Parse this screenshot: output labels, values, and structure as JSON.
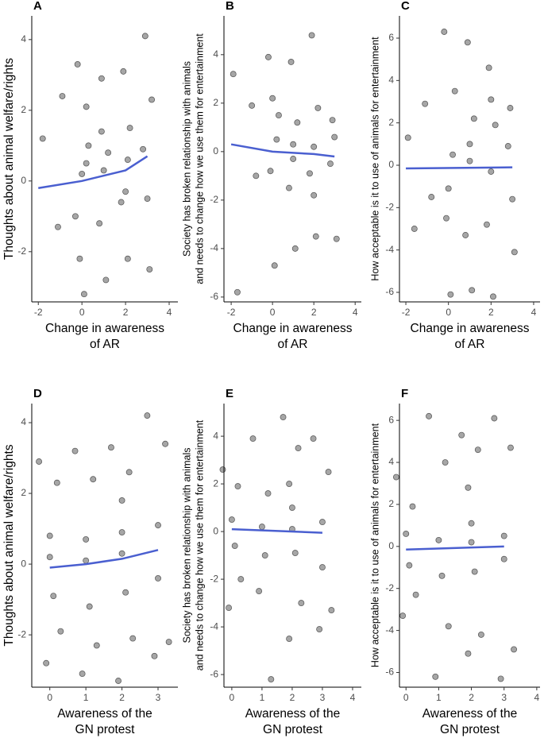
{
  "chart_data": [
    {
      "type": "scatter",
      "panel_label": "A",
      "y_label": [
        "Thoughts about animal welfare/rights"
      ],
      "x_label": [
        "Change in awareness",
        "of AR"
      ],
      "xlim": [
        -2.3,
        4.4
      ],
      "ylim": [
        -3.42,
        4.67
      ],
      "xticks": [
        -2,
        0,
        2,
        4
      ],
      "yticks": [
        -2,
        0,
        2,
        4
      ],
      "point_color": "#000000",
      "line_color": "#4a5fd0",
      "x": [
        -1.8,
        -1.1,
        -0.9,
        -0.2,
        0.1,
        0.3,
        -0.3,
        0.2,
        0.9,
        1.1,
        1.2,
        0.8,
        1.9,
        2.1,
        2.2,
        1.8,
        2.9,
        3.1,
        2.8,
        3.2,
        0.0,
        1.0,
        2.0,
        -0.1,
        0.9,
        2.1,
        3.0,
        0.2
      ],
      "y": [
        1.2,
        -1.3,
        2.4,
        3.3,
        -3.2,
        1.0,
        -1.0,
        0.5,
        2.9,
        -2.8,
        0.8,
        -1.2,
        3.1,
        -2.2,
        1.5,
        -0.6,
        4.1,
        -2.5,
        0.9,
        2.3,
        0.2,
        0.3,
        -0.3,
        -2.2,
        1.4,
        0.6,
        -0.5,
        2.1
      ],
      "trend": {
        "x": [
          -2,
          0,
          2,
          3
        ],
        "y": [
          -0.2,
          0,
          0.3,
          0.7
        ]
      }
    },
    {
      "type": "scatter",
      "panel_label": "B",
      "y_label": [
        "Society has broken relationship with animals",
        "and needs to change how we use them for entertainment"
      ],
      "x_label": [
        "Change in awareness",
        "of AR"
      ],
      "xlim": [
        -2.35,
        4.3
      ],
      "ylim": [
        -6.2,
        5.6
      ],
      "xticks": [
        -2,
        0,
        2,
        4
      ],
      "yticks": [
        -6,
        -4,
        -2,
        0,
        2,
        4
      ],
      "point_color": "#000000",
      "line_color": "#4a5fd0",
      "x": [
        -1.9,
        -1.7,
        -1.0,
        -0.8,
        -0.2,
        0.1,
        0.3,
        -0.1,
        0.2,
        0.9,
        1.1,
        1.2,
        0.8,
        1.0,
        1.9,
        2.1,
        2.2,
        1.8,
        2.0,
        2.9,
        3.1,
        2.8,
        0.0,
        1.0,
        2.0,
        3.0
      ],
      "y": [
        3.2,
        -5.8,
        1.9,
        -1.0,
        3.9,
        -4.7,
        1.5,
        -0.8,
        0.5,
        3.7,
        -4.0,
        1.2,
        -1.5,
        0.3,
        4.8,
        -3.5,
        1.8,
        -0.9,
        0.2,
        1.3,
        -3.6,
        -0.5,
        2.2,
        -0.3,
        -1.8,
        0.6
      ],
      "trend": {
        "x": [
          -2,
          0,
          2,
          3
        ],
        "y": [
          0.3,
          0,
          -0.1,
          -0.2
        ]
      }
    },
    {
      "type": "scatter",
      "panel_label": "C",
      "y_label": [
        "How acceptable is it to use of animals for entertainment"
      ],
      "x_label": [
        "Change in awareness",
        "of AR"
      ],
      "xlim": [
        -2.3,
        4.3
      ],
      "ylim": [
        -6.45,
        7.05
      ],
      "xticks": [
        -2,
        0,
        2,
        4
      ],
      "yticks": [
        -6,
        -4,
        -2,
        0,
        2,
        4,
        6
      ],
      "point_color": "#000000",
      "line_color": "#4a5fd0",
      "x": [
        -1.9,
        -1.6,
        -1.1,
        -0.8,
        -0.2,
        0.1,
        0.3,
        -0.1,
        0.2,
        0.9,
        1.1,
        1.2,
        0.8,
        1.0,
        1.9,
        2.1,
        2.2,
        1.8,
        2.0,
        2.9,
        3.1,
        2.8,
        0.0,
        1.0,
        2.0,
        3.0
      ],
      "y": [
        1.3,
        -3.0,
        2.9,
        -1.5,
        6.3,
        -6.1,
        3.5,
        -2.5,
        0.5,
        5.8,
        -5.9,
        2.2,
        -3.3,
        0.2,
        4.6,
        -6.2,
        1.9,
        -2.8,
        -0.3,
        2.7,
        -4.1,
        0.9,
        -1.1,
        1.0,
        3.1,
        -1.6
      ],
      "trend": {
        "x": [
          -2,
          3
        ],
        "y": [
          -0.15,
          -0.1
        ]
      }
    },
    {
      "type": "scatter",
      "panel_label": "D",
      "y_label": [
        "Thoughts about animal welfare/rights"
      ],
      "x_label": [
        "Awareness of the",
        "GN protest"
      ],
      "xlim": [
        -0.5,
        3.55
      ],
      "ylim": [
        -3.48,
        4.54
      ],
      "xticks": [
        0,
        1,
        2,
        3
      ],
      "yticks": [
        -2,
        0,
        2,
        4
      ],
      "point_color": "#000000",
      "line_color": "#4a5fd0",
      "x": [
        -0.3,
        -0.1,
        0.2,
        0.3,
        0.0,
        0.1,
        0.7,
        0.9,
        1.2,
        1.3,
        1.0,
        1.1,
        1.7,
        1.9,
        2.2,
        2.3,
        2.0,
        2.1,
        2.7,
        2.9,
        3.2,
        3.3,
        3.0,
        0.0,
        1.0,
        2.0,
        3.0,
        2.0
      ],
      "y": [
        2.9,
        -2.8,
        2.3,
        -1.9,
        0.8,
        -0.9,
        3.2,
        -3.1,
        2.4,
        -2.3,
        0.7,
        -1.2,
        3.3,
        -3.3,
        2.6,
        -2.1,
        0.9,
        -0.8,
        4.2,
        -2.6,
        3.4,
        -2.2,
        1.1,
        0.2,
        0.1,
        0.3,
        -0.4,
        1.8
      ],
      "trend": {
        "x": [
          0,
          1,
          2,
          3
        ],
        "y": [
          -0.1,
          0,
          0.15,
          0.4
        ]
      }
    },
    {
      "type": "scatter",
      "panel_label": "E",
      "y_label": [
        "Society has broken relationship with animals",
        "and needs to change how we use them for entertainment"
      ],
      "x_label": [
        "Awareness of the",
        "GN protest"
      ],
      "xlim": [
        -0.26,
        4.29
      ],
      "ylim": [
        -6.53,
        5.37
      ],
      "xticks": [
        0,
        1,
        2,
        3,
        4
      ],
      "yticks": [
        -6,
        -4,
        -2,
        0,
        2,
        4
      ],
      "point_color": "#000000",
      "line_color": "#4a5fd0",
      "x": [
        -0.3,
        -0.1,
        0.2,
        0.3,
        0.0,
        0.7,
        0.9,
        1.2,
        1.3,
        1.0,
        1.7,
        1.9,
        2.2,
        2.3,
        2.0,
        2.1,
        2.7,
        2.9,
        3.2,
        3.3,
        3.0,
        0.1,
        1.1,
        2.0,
        3.0,
        1.9
      ],
      "y": [
        2.6,
        -3.2,
        1.9,
        -2.0,
        0.5,
        3.9,
        -2.5,
        1.6,
        -6.2,
        0.2,
        4.8,
        -4.5,
        3.5,
        -3.0,
        1.0,
        -0.9,
        3.9,
        -4.1,
        2.5,
        -3.3,
        0.4,
        -0.6,
        -1.0,
        0.1,
        -1.5,
        2.0
      ],
      "trend": {
        "x": [
          0,
          3
        ],
        "y": [
          0.1,
          -0.05
        ]
      }
    },
    {
      "type": "scatter",
      "panel_label": "F",
      "y_label": [
        "How acceptable is it to use of animals for entertainment"
      ],
      "x_label": [
        "Awareness of the",
        "GN protest"
      ],
      "xlim": [
        -0.2,
        4.1
      ],
      "ylim": [
        -6.7,
        6.8
      ],
      "xticks": [
        0,
        1,
        2,
        3,
        4
      ],
      "yticks": [
        -6,
        -4,
        -2,
        0,
        2,
        4,
        6
      ],
      "point_color": "#000000",
      "line_color": "#4a5fd0",
      "x": [
        -0.3,
        -0.1,
        0.2,
        0.3,
        0.0,
        0.7,
        0.9,
        1.2,
        1.3,
        1.0,
        1.7,
        1.9,
        2.2,
        2.3,
        2.0,
        2.1,
        2.7,
        2.9,
        3.2,
        3.3,
        3.0,
        0.1,
        1.1,
        2.0,
        3.0,
        1.9
      ],
      "y": [
        3.3,
        -3.3,
        1.9,
        -2.3,
        0.6,
        6.2,
        -6.2,
        4.0,
        -3.8,
        0.3,
        5.3,
        -5.1,
        4.6,
        -4.2,
        1.1,
        -1.2,
        6.1,
        -6.3,
        4.7,
        -4.9,
        0.5,
        -0.9,
        -1.4,
        0.2,
        -0.6,
        2.8
      ],
      "trend": {
        "x": [
          0,
          3
        ],
        "y": [
          -0.15,
          0
        ]
      }
    }
  ]
}
